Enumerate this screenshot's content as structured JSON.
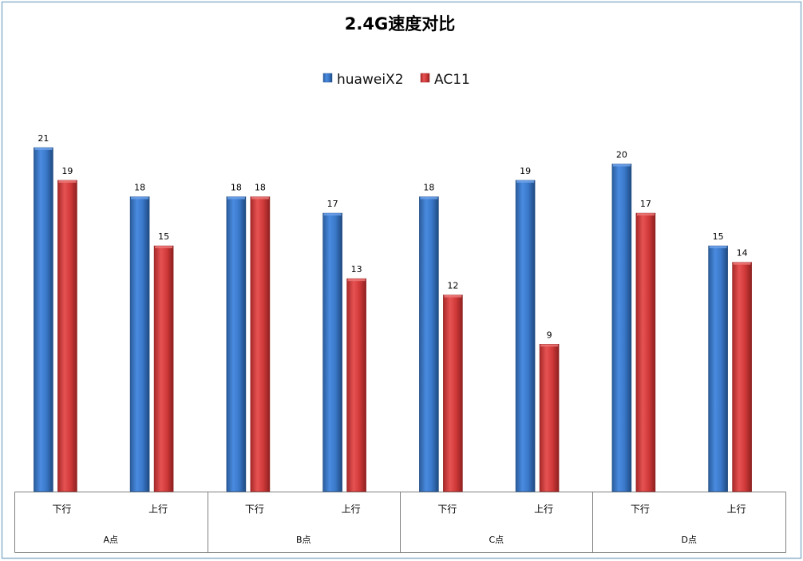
{
  "chart_data": {
    "type": "bar",
    "title": "2.4G速度对比",
    "xlabel": "",
    "ylabel": "",
    "ylim": [
      0,
      21
    ],
    "grid": false,
    "legend_position": "top",
    "categories": [
      "下行",
      "上行",
      "下行",
      "上行",
      "下行",
      "上行",
      "下行",
      "上行"
    ],
    "groups": [
      "A点",
      "B点",
      "C点",
      "D点"
    ],
    "series": [
      {
        "name": "huaweiX2",
        "color": "#3a78c9",
        "values": [
          21,
          18,
          18,
          17,
          18,
          19,
          20,
          15
        ]
      },
      {
        "name": "AC11",
        "color": "#d23a3a",
        "values": [
          19,
          15,
          18,
          13,
          12,
          9,
          17,
          14
        ]
      }
    ]
  }
}
